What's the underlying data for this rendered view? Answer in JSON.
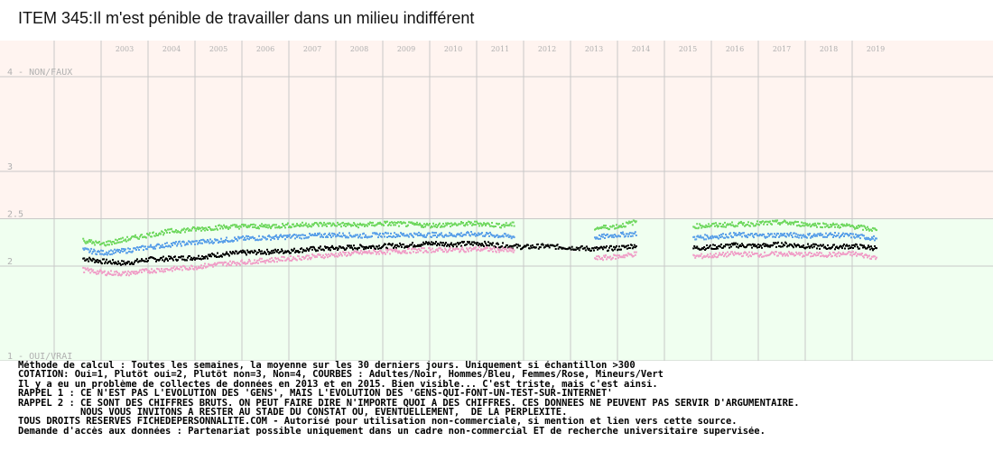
{
  "title": "ITEM 345:Il m'est pénible de travailler dans un milieu indifférent",
  "notes": [
    "Méthode de calcul : Toutes les semaines, la moyenne sur les 30 derniers jours. Uniquement si échantillon >300",
    "COTATION: Oui=1, Plutôt oui=2, Plutôt non=3, Non=4, COURBES : Adultes/Noir, Hommes/Bleu, Femmes/Rose, Mineurs/Vert",
    "Il y a eu un problème de collectes de données en 2013 et en 2015. Bien visible... C'est triste, mais c'est ainsi.",
    "RAPPEL 1 : CE N'EST PAS L'EVOLUTION DES 'GENS', MAIS L'EVOLUTION DES 'GENS-QUI-FONT-UN-TEST-SUR-INTERNET'",
    "RAPPEL 2 : CE SONT DES CHIFFRES BRUTS. ON PEUT FAIRE DIRE N'IMPORTE QUOI A DES CHIFFRES. CES DONNEES NE PEUVENT PAS SERVIR D'ARGUMENTAIRE.",
    "           NOUS VOUS INVITONS A RESTER AU STADE DU CONSTAT OU, EVENTUELLEMENT,  DE LA PERPLEXITE.",
    "TOUS DROITS RESERVES FICHEDEPERSONNALITE.COM - Autorisé pour utilisation non-commerciale, si mention et lien vers cette source.",
    "Demande d'accès aux données : Partenariat possible uniquement dans un cadre non-commercial ET de recherche universitaire supervisée."
  ],
  "colors": {
    "top_band": "#fff4f0",
    "bottom_band": "#f0fff0",
    "grid": "#c8c8c8",
    "tick_text": "#b0b0b0",
    "adultes": "#000000",
    "hommes": "#5aa0e8",
    "femmes": "#f0a0c8",
    "mineurs": "#70d860"
  },
  "chart_data": {
    "type": "scatter",
    "title": "ITEM 345:Il m'est pénible de travailler dans un milieu indifférent",
    "x_tick_labels": [
      "2003",
      "2004",
      "2005",
      "2006",
      "2007",
      "2008",
      "2009",
      "2010",
      "2011",
      "2012",
      "2013",
      "2014",
      "2015",
      "2016",
      "2017",
      "2018",
      "2019"
    ],
    "y_tick_labels": [
      {
        "value": 4,
        "label": "4 - NON/FAUX"
      },
      {
        "value": 3,
        "label": "3"
      },
      {
        "value": 2.5,
        "label": "2.5"
      },
      {
        "value": 2,
        "label": "2"
      },
      {
        "value": 1,
        "label": "1 - OUI/VRAI"
      }
    ],
    "ylim": [
      1,
      4
    ],
    "xlim": [
      2002.0,
      2021.0
    ],
    "grid": true,
    "background_split": 2.5,
    "series": [
      {
        "name": "Adultes",
        "color": "#000000",
        "points": [
          [
            2003.1,
            2.08
          ],
          [
            2003.5,
            2.05
          ],
          [
            2004.0,
            2.03
          ],
          [
            2004.5,
            2.07
          ],
          [
            2005.0,
            2.08
          ],
          [
            2005.5,
            2.09
          ],
          [
            2006.0,
            2.12
          ],
          [
            2006.5,
            2.14
          ],
          [
            2007.0,
            2.15
          ],
          [
            2007.5,
            2.16
          ],
          [
            2008.0,
            2.18
          ],
          [
            2008.5,
            2.19
          ],
          [
            2009.0,
            2.2
          ],
          [
            2009.5,
            2.21
          ],
          [
            2010.0,
            2.22
          ],
          [
            2010.5,
            2.24
          ],
          [
            2011.0,
            2.23
          ],
          [
            2011.5,
            2.24
          ],
          [
            2012.0,
            2.22
          ],
          [
            2012.5,
            2.2
          ],
          [
            2012.9,
            2.21
          ],
          [
            2013.3,
            2.2
          ],
          [
            2014.0,
            2.18
          ],
          [
            2014.5,
            2.19
          ],
          [
            2014.9,
            2.22
          ],
          [
            2016.1,
            2.19
          ],
          [
            2016.5,
            2.2
          ],
          [
            2017.0,
            2.22
          ],
          [
            2017.5,
            2.21
          ],
          [
            2018.0,
            2.23
          ],
          [
            2018.5,
            2.21
          ],
          [
            2019.0,
            2.2
          ],
          [
            2019.5,
            2.21
          ],
          [
            2020.0,
            2.19
          ]
        ]
      },
      {
        "name": "Hommes",
        "color": "#5aa0e8",
        "points": [
          [
            2003.1,
            2.17
          ],
          [
            2003.5,
            2.14
          ],
          [
            2004.0,
            2.16
          ],
          [
            2004.5,
            2.2
          ],
          [
            2005.0,
            2.23
          ],
          [
            2005.5,
            2.25
          ],
          [
            2006.0,
            2.27
          ],
          [
            2006.5,
            2.29
          ],
          [
            2007.0,
            2.3
          ],
          [
            2007.5,
            2.31
          ],
          [
            2008.0,
            2.32
          ],
          [
            2008.5,
            2.33
          ],
          [
            2009.0,
            2.32
          ],
          [
            2009.5,
            2.33
          ],
          [
            2010.0,
            2.33
          ],
          [
            2010.5,
            2.33
          ],
          [
            2011.0,
            2.33
          ],
          [
            2011.5,
            2.34
          ],
          [
            2012.0,
            2.32
          ],
          [
            2012.3,
            2.31
          ],
          [
            2014.0,
            2.3
          ],
          [
            2014.5,
            2.33
          ],
          [
            2014.9,
            2.34
          ],
          [
            2016.1,
            2.3
          ],
          [
            2016.5,
            2.31
          ],
          [
            2017.0,
            2.33
          ],
          [
            2017.5,
            2.32
          ],
          [
            2018.0,
            2.33
          ],
          [
            2018.5,
            2.32
          ],
          [
            2019.0,
            2.33
          ],
          [
            2019.5,
            2.32
          ],
          [
            2020.0,
            2.29
          ]
        ]
      },
      {
        "name": "Femmes",
        "color": "#f0a0c8",
        "points": [
          [
            2003.1,
            1.96
          ],
          [
            2003.5,
            1.93
          ],
          [
            2004.0,
            1.92
          ],
          [
            2004.5,
            1.95
          ],
          [
            2005.0,
            1.97
          ],
          [
            2005.5,
            1.99
          ],
          [
            2006.0,
            2.02
          ],
          [
            2006.5,
            2.04
          ],
          [
            2007.0,
            2.06
          ],
          [
            2007.5,
            2.08
          ],
          [
            2008.0,
            2.1
          ],
          [
            2008.5,
            2.12
          ],
          [
            2009.0,
            2.14
          ],
          [
            2009.5,
            2.15
          ],
          [
            2010.0,
            2.16
          ],
          [
            2010.5,
            2.17
          ],
          [
            2011.0,
            2.17
          ],
          [
            2011.5,
            2.18
          ],
          [
            2012.0,
            2.17
          ],
          [
            2012.3,
            2.16
          ],
          [
            2014.0,
            2.08
          ],
          [
            2014.5,
            2.1
          ],
          [
            2014.9,
            2.13
          ],
          [
            2016.1,
            2.1
          ],
          [
            2016.5,
            2.11
          ],
          [
            2017.0,
            2.13
          ],
          [
            2017.5,
            2.12
          ],
          [
            2018.0,
            2.13
          ],
          [
            2018.5,
            2.12
          ],
          [
            2019.0,
            2.12
          ],
          [
            2019.5,
            2.13
          ],
          [
            2020.0,
            2.09
          ]
        ]
      },
      {
        "name": "Mineurs",
        "color": "#70d860",
        "points": [
          [
            2003.1,
            2.27
          ],
          [
            2003.5,
            2.23
          ],
          [
            2004.0,
            2.28
          ],
          [
            2004.5,
            2.33
          ],
          [
            2005.0,
            2.37
          ],
          [
            2005.5,
            2.39
          ],
          [
            2006.0,
            2.41
          ],
          [
            2006.5,
            2.42
          ],
          [
            2007.0,
            2.42
          ],
          [
            2007.5,
            2.43
          ],
          [
            2008.0,
            2.44
          ],
          [
            2008.5,
            2.44
          ],
          [
            2009.0,
            2.43
          ],
          [
            2009.5,
            2.45
          ],
          [
            2010.0,
            2.44
          ],
          [
            2010.5,
            2.43
          ],
          [
            2011.0,
            2.44
          ],
          [
            2011.5,
            2.45
          ],
          [
            2012.0,
            2.43
          ],
          [
            2012.3,
            2.44
          ],
          [
            2014.0,
            2.4
          ],
          [
            2014.5,
            2.42
          ],
          [
            2014.9,
            2.47
          ],
          [
            2016.1,
            2.42
          ],
          [
            2016.5,
            2.43
          ],
          [
            2017.0,
            2.44
          ],
          [
            2017.5,
            2.45
          ],
          [
            2018.0,
            2.46
          ],
          [
            2018.5,
            2.44
          ],
          [
            2019.0,
            2.43
          ],
          [
            2019.5,
            2.42
          ],
          [
            2020.0,
            2.38
          ]
        ]
      }
    ]
  }
}
